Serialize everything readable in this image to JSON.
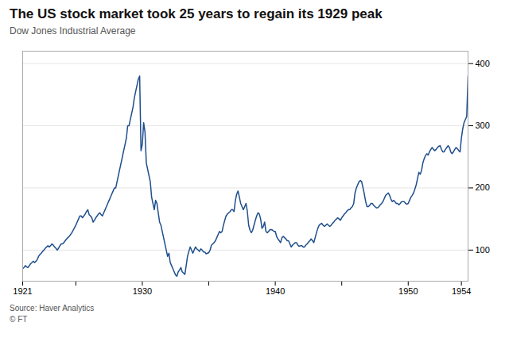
{
  "chart_data": {
    "type": "line",
    "title": "The US stock market took 25 years to regain its 1929 peak",
    "subtitle": "Dow Jones Industrial Average",
    "source": "Source: Haver Analytics",
    "copyright": "© FT",
    "color": "#1f4e8c",
    "grid": "y",
    "xlim": [
      1921,
      1954.5
    ],
    "ylim": [
      50,
      420
    ],
    "yticks": [
      100,
      200,
      300,
      400
    ],
    "xticks": [
      1921,
      {
        "value": 1925,
        "label": null
      },
      1930,
      {
        "value": 1935,
        "label": null
      },
      1940,
      {
        "value": 1945,
        "label": null
      },
      1950,
      1954
    ],
    "x": [
      1921.0,
      1921.1,
      1921.2,
      1921.3,
      1921.4,
      1921.5,
      1921.6,
      1921.7,
      1921.8,
      1921.9,
      1922.0,
      1922.1,
      1922.2,
      1922.3,
      1922.4,
      1922.5,
      1922.6,
      1922.7,
      1922.8,
      1922.9,
      1923.0,
      1923.1,
      1923.2,
      1923.3,
      1923.4,
      1923.5,
      1923.6,
      1923.7,
      1923.8,
      1923.9,
      1924.0,
      1924.1,
      1924.2,
      1924.3,
      1924.4,
      1924.5,
      1924.6,
      1924.7,
      1924.8,
      1924.9,
      1925.0,
      1925.1,
      1925.2,
      1925.3,
      1925.4,
      1925.5,
      1925.6,
      1925.7,
      1925.8,
      1925.9,
      1926.0,
      1926.1,
      1926.2,
      1926.3,
      1926.4,
      1926.5,
      1926.6,
      1926.7,
      1926.8,
      1926.9,
      1927.0,
      1927.1,
      1927.2,
      1927.3,
      1927.4,
      1927.5,
      1927.6,
      1927.7,
      1927.8,
      1927.9,
      1928.0,
      1928.1,
      1928.2,
      1928.3,
      1928.4,
      1928.5,
      1928.6,
      1928.7,
      1928.8,
      1928.9,
      1929.0,
      1929.1,
      1929.2,
      1929.3,
      1929.4,
      1929.5,
      1929.6,
      1929.7,
      1929.8,
      1929.9,
      1930.0,
      1930.1,
      1930.2,
      1930.3,
      1930.4,
      1930.5,
      1930.6,
      1930.7,
      1930.8,
      1930.9,
      1931.0,
      1931.1,
      1931.2,
      1931.3,
      1931.4,
      1931.5,
      1931.6,
      1931.7,
      1931.8,
      1931.9,
      1932.0,
      1932.1,
      1932.2,
      1932.3,
      1932.4,
      1932.5,
      1932.6,
      1932.7,
      1932.8,
      1932.9,
      1933.0,
      1933.1,
      1933.2,
      1933.3,
      1933.4,
      1933.5,
      1933.6,
      1933.7,
      1933.8,
      1933.9,
      1934.0,
      1934.1,
      1934.2,
      1934.3,
      1934.4,
      1934.5,
      1934.6,
      1934.7,
      1934.8,
      1934.9,
      1935.0,
      1935.1,
      1935.2,
      1935.3,
      1935.4,
      1935.5,
      1935.6,
      1935.7,
      1935.8,
      1935.9,
      1936.0,
      1936.1,
      1936.2,
      1936.3,
      1936.4,
      1936.5,
      1936.6,
      1936.7,
      1936.8,
      1936.9,
      1937.0,
      1937.1,
      1937.2,
      1937.3,
      1937.4,
      1937.5,
      1937.6,
      1937.7,
      1937.8,
      1937.9,
      1938.0,
      1938.1,
      1938.2,
      1938.3,
      1938.4,
      1938.5,
      1938.6,
      1938.7,
      1938.8,
      1938.9,
      1939.0,
      1939.1,
      1939.2,
      1939.3,
      1939.4,
      1939.5,
      1939.6,
      1939.7,
      1939.8,
      1939.9,
      1940.0,
      1940.1,
      1940.2,
      1940.3,
      1940.4,
      1940.5,
      1940.6,
      1940.7,
      1940.8,
      1940.9,
      1941.0,
      1941.1,
      1941.2,
      1941.3,
      1941.4,
      1941.5,
      1941.6,
      1941.7,
      1941.8,
      1941.9,
      1942.0,
      1942.1,
      1942.2,
      1942.3,
      1942.4,
      1942.5,
      1942.6,
      1942.7,
      1942.8,
      1942.9,
      1943.0,
      1943.1,
      1943.2,
      1943.3,
      1943.4,
      1943.5,
      1943.6,
      1943.7,
      1943.8,
      1943.9,
      1944.0,
      1944.1,
      1944.2,
      1944.3,
      1944.4,
      1944.5,
      1944.6,
      1944.7,
      1944.8,
      1944.9,
      1945.0,
      1945.1,
      1945.2,
      1945.3,
      1945.4,
      1945.5,
      1945.6,
      1945.7,
      1945.8,
      1945.9,
      1946.0,
      1946.1,
      1946.2,
      1946.3,
      1946.4,
      1946.5,
      1946.6,
      1946.7,
      1946.8,
      1946.9,
      1947.0,
      1947.1,
      1947.2,
      1947.3,
      1947.4,
      1947.5,
      1947.6,
      1947.7,
      1947.8,
      1947.9,
      1948.0,
      1948.1,
      1948.2,
      1948.3,
      1948.4,
      1948.5,
      1948.6,
      1948.7,
      1948.8,
      1948.9,
      1949.0,
      1949.1,
      1949.2,
      1949.3,
      1949.4,
      1949.5,
      1949.6,
      1949.7,
      1949.8,
      1949.9,
      1950.0,
      1950.1,
      1950.2,
      1950.3,
      1950.4,
      1950.5,
      1950.6,
      1950.7,
      1950.8,
      1950.9,
      1951.0,
      1951.1,
      1951.2,
      1951.3,
      1951.4,
      1951.5,
      1951.6,
      1951.7,
      1951.8,
      1951.9,
      1952.0,
      1952.1,
      1952.2,
      1952.3,
      1952.4,
      1952.5,
      1952.6,
      1952.7,
      1952.8,
      1952.9,
      1953.0,
      1953.1,
      1953.2,
      1953.3,
      1953.4,
      1953.5,
      1953.6,
      1953.7,
      1953.8,
      1953.9,
      1954.0,
      1954.1,
      1954.2,
      1954.3,
      1954.4,
      1954.5
    ],
    "values": [
      70,
      72,
      75,
      73,
      72,
      75,
      78,
      80,
      82,
      80,
      82,
      85,
      90,
      93,
      95,
      98,
      100,
      103,
      105,
      107,
      105,
      107,
      110,
      108,
      105,
      103,
      100,
      103,
      107,
      110,
      110,
      112,
      115,
      118,
      120,
      122,
      125,
      128,
      132,
      136,
      140,
      145,
      150,
      155,
      155,
      152,
      155,
      158,
      162,
      165,
      157,
      155,
      152,
      145,
      148,
      152,
      155,
      158,
      160,
      157,
      155,
      160,
      165,
      170,
      175,
      180,
      185,
      190,
      195,
      200,
      200,
      210,
      220,
      230,
      240,
      250,
      260,
      270,
      280,
      300,
      300,
      310,
      320,
      330,
      345,
      355,
      365,
      375,
      380,
      260,
      270,
      305,
      290,
      240,
      230,
      220,
      210,
      185,
      175,
      165,
      180,
      175,
      160,
      145,
      140,
      130,
      120,
      110,
      100,
      90,
      95,
      80,
      75,
      70,
      65,
      60,
      58,
      65,
      68,
      72,
      65,
      63,
      61,
      75,
      90,
      98,
      105,
      100,
      95,
      100,
      105,
      102,
      100,
      98,
      102,
      100,
      97,
      97,
      94,
      95,
      96,
      100,
      108,
      110,
      112,
      115,
      120,
      125,
      130,
      128,
      130,
      140,
      148,
      155,
      158,
      160,
      162,
      165,
      165,
      162,
      180,
      190,
      195,
      185,
      175,
      170,
      165,
      170,
      175,
      162,
      140,
      132,
      128,
      132,
      140,
      148,
      155,
      160,
      158,
      150,
      135,
      138,
      145,
      130,
      128,
      130,
      133,
      133,
      132,
      130,
      130,
      122,
      118,
      115,
      112,
      120,
      122,
      120,
      118,
      115,
      115,
      110,
      105,
      108,
      110,
      112,
      112,
      108,
      106,
      107,
      107,
      105,
      105,
      108,
      110,
      113,
      115,
      118,
      115,
      112,
      120,
      128,
      135,
      140,
      142,
      143,
      140,
      138,
      140,
      142,
      140,
      138,
      140,
      143,
      145,
      148,
      150,
      152,
      150,
      148,
      152,
      155,
      158,
      160,
      163,
      165,
      165,
      168,
      170,
      175,
      192,
      200,
      205,
      210,
      212,
      210,
      200,
      190,
      178,
      170,
      170,
      172,
      175,
      175,
      172,
      170,
      168,
      168,
      170,
      173,
      175,
      178,
      183,
      188,
      190,
      192,
      188,
      182,
      178,
      180,
      178,
      175,
      175,
      173,
      175,
      178,
      178,
      178,
      175,
      174,
      175,
      180,
      185,
      188,
      192,
      198,
      205,
      215,
      225,
      222,
      228,
      240,
      247,
      252,
      255,
      253,
      258,
      262,
      265,
      262,
      260,
      262,
      265,
      267,
      268,
      262,
      258,
      258,
      262,
      265,
      268,
      265,
      258,
      255,
      258,
      262,
      265,
      263,
      260,
      258,
      280,
      295,
      305,
      310,
      315,
      380
    ]
  }
}
